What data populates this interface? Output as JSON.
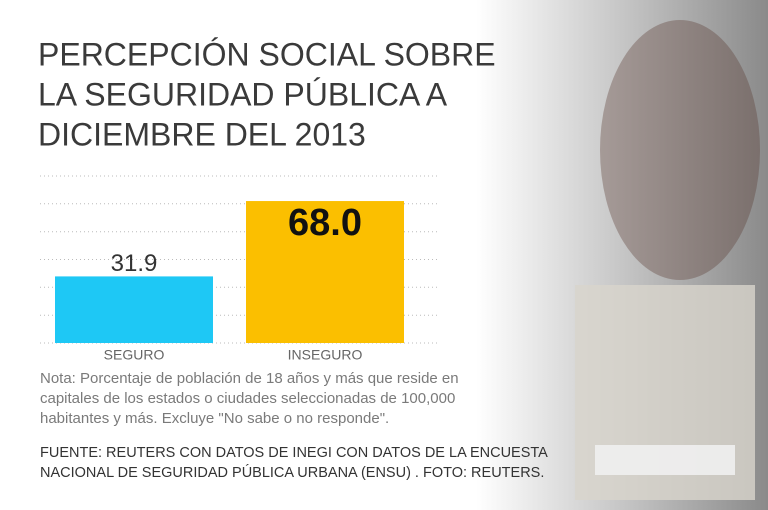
{
  "chart_data": {
    "type": "bar",
    "title": [
      "PERCEPCIÓN SOCIAL SOBRE",
      "LA SEGURIDAD PÚBLICA A",
      "DICIEMBRE DEL 2013"
    ],
    "categories": [
      "SEGURO",
      "INSEGURO"
    ],
    "values": [
      31.9,
      68.0
    ],
    "value_labels": [
      "31.9",
      "68.0"
    ],
    "colors": [
      "#1ec8f5",
      "#fbbf00"
    ],
    "ylim": [
      0,
      80
    ],
    "yticks": [
      0,
      13.3,
      26.7,
      40,
      53.3,
      66.7,
      80
    ],
    "grid": true,
    "note": [
      "Nota: Porcentaje de población de 18 años y más que reside en",
      "capitales de los estados o ciudades seleccionadas de 100,000",
      "habitantes y más. Excluye \"No sabe o no responde\"."
    ],
    "source": [
      "FUENTE: REUTERS CON DATOS DE INEGI CON DATOS DE LA ENCUESTA",
      "NACIONAL DE SEGURIDAD PÚBLICA URBANA (ENSU) . FOTO: REUTERS."
    ]
  }
}
